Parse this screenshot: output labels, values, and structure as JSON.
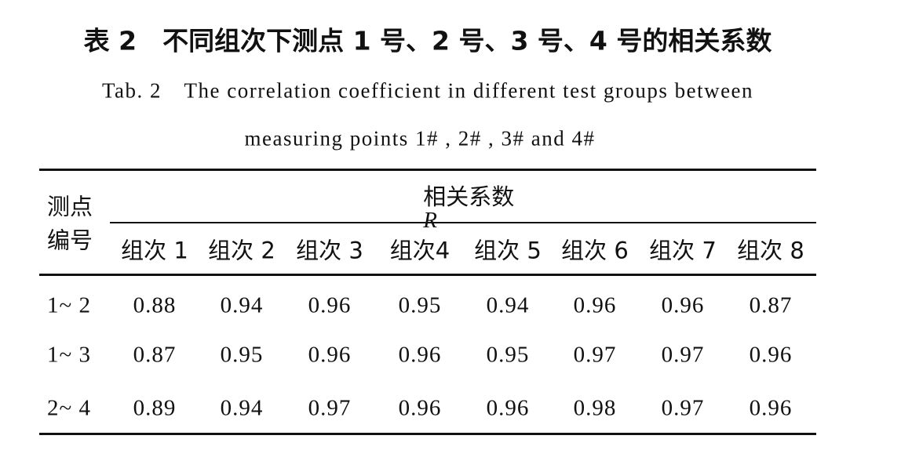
{
  "caption": {
    "title_cn": "表 2　不同组次下测点 1 号、2 号、3 号、4 号的相关系数",
    "title_en_lines": [
      "Tab. 2　The correlation coefficient in different test groups between",
      "measuring points 1# , 2# , 3# and 4#"
    ]
  },
  "table": {
    "row_header_lines": [
      "测点",
      "编号"
    ],
    "group_header": "相关系数",
    "group_header_symbol": "R",
    "columns": [
      "组次 1",
      "组次 2",
      "组次 3",
      "组次4",
      "组次 5",
      "组次 6",
      "组次 7",
      "组次 8"
    ],
    "rows": [
      {
        "label": "1~ 2",
        "cells": [
          "0.88",
          "0.94",
          "0.96",
          "0.95",
          "0.94",
          "0.96",
          "0.96",
          "0.87"
        ]
      },
      {
        "label": "1~ 3",
        "cells": [
          "0.87",
          "0.95",
          "0.96",
          "0.96",
          "0.95",
          "0.97",
          "0.97",
          "0.96"
        ]
      },
      {
        "label": "2~ 4",
        "cells": [
          "0.89",
          "0.94",
          "0.97",
          "0.96",
          "0.96",
          "0.98",
          "0.97",
          "0.96"
        ]
      }
    ]
  }
}
